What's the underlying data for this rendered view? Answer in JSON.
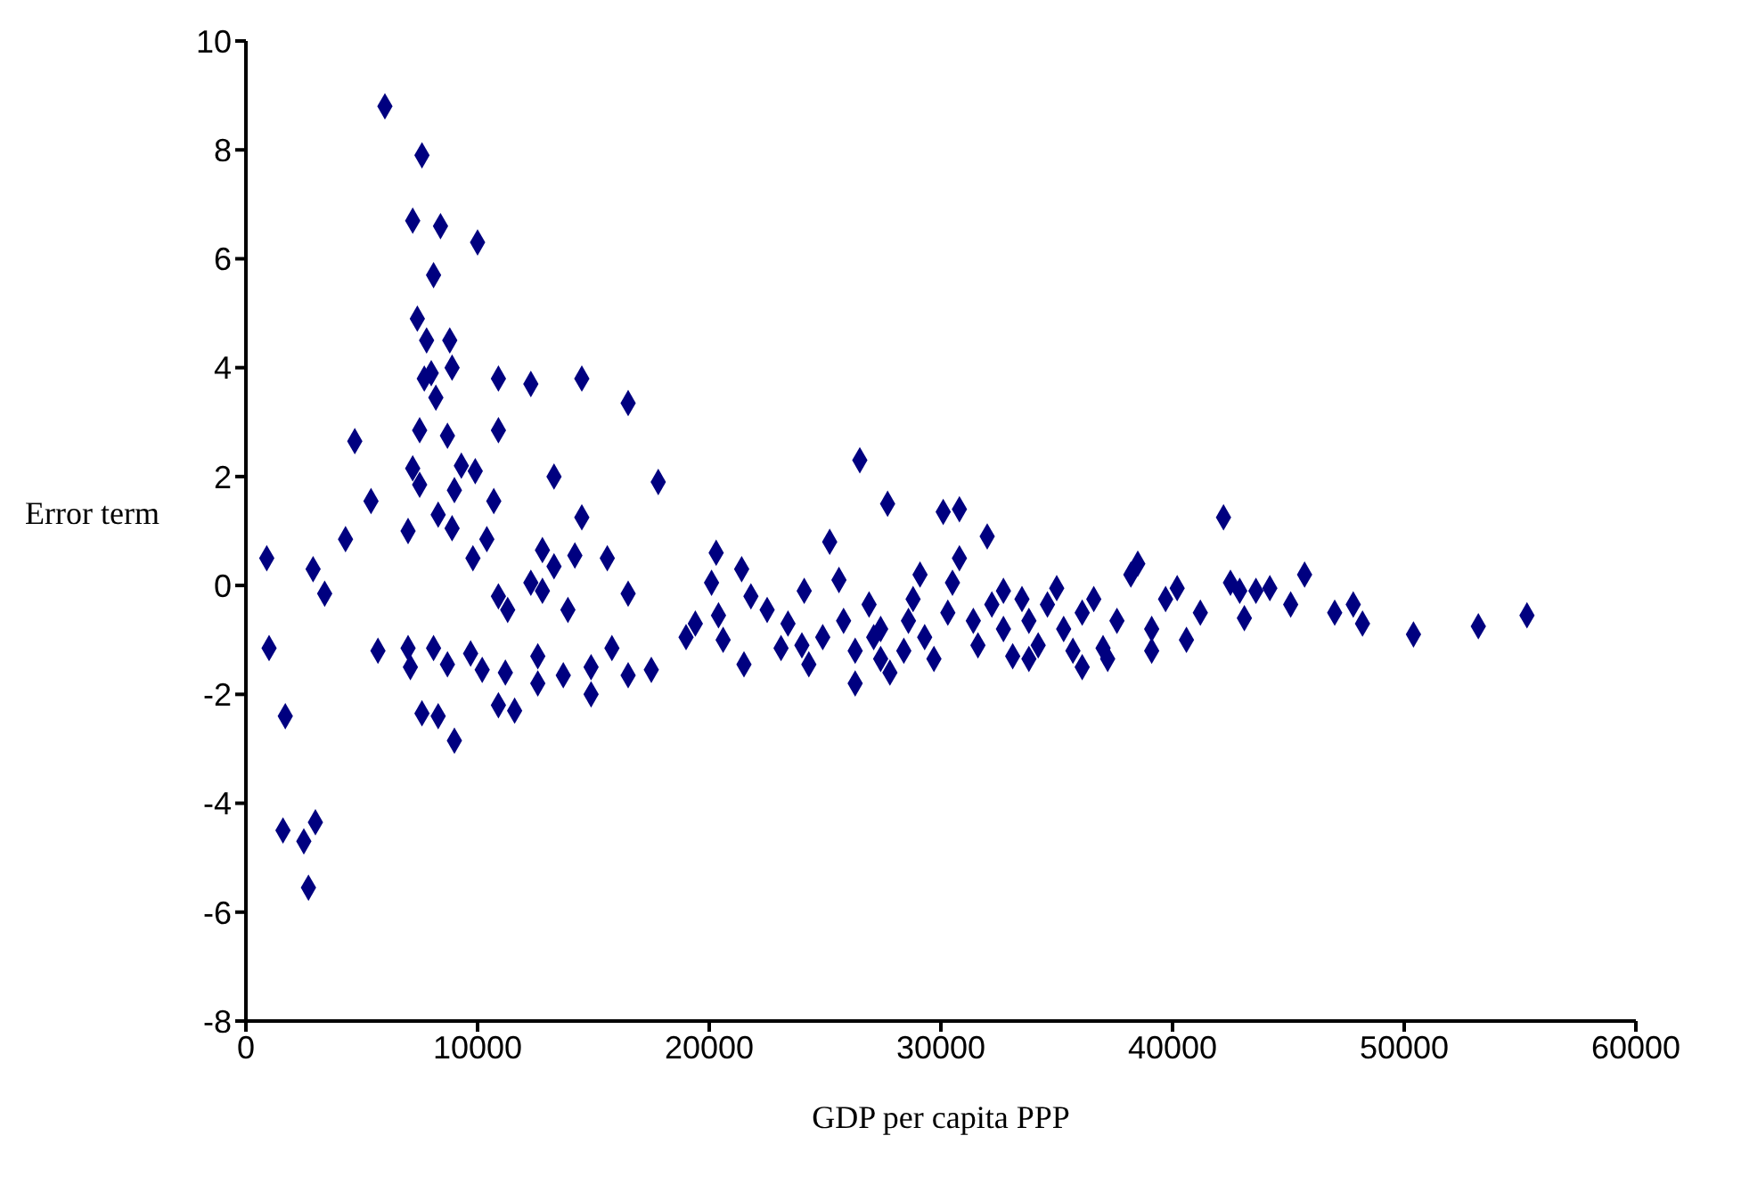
{
  "chart_data": {
    "type": "scatter",
    "xlabel": "GDP per capita PPP",
    "ylabel": "Error term",
    "marker": "diamond",
    "xlim": [
      0,
      60000
    ],
    "xticks": [
      0,
      10000,
      20000,
      30000,
      40000,
      50000,
      60000
    ],
    "ylim": [
      -8,
      10
    ],
    "yticks": [
      -8,
      -6,
      -4,
      -2,
      0,
      2,
      4,
      6,
      8,
      10
    ],
    "series": [
      {
        "color": "#000080",
        "x": [
          6000,
          7600,
          7200,
          8400,
          10000,
          8100,
          7400,
          7800,
          8800,
          7700,
          8000,
          8900,
          10900,
          12300,
          14500,
          16500,
          8200,
          7500,
          8700,
          10900,
          4700,
          7200,
          9300,
          9900,
          13300,
          17800,
          5400,
          7500,
          9000,
          10700,
          14500,
          8300,
          8900,
          7000,
          10400,
          4300,
          900,
          2900,
          9800,
          12800,
          13300,
          14200,
          15600,
          12300,
          12800,
          3400,
          10900,
          11300,
          13900,
          16500,
          1000,
          5700,
          7000,
          8100,
          9700,
          7100,
          8700,
          10200,
          11200,
          12600,
          12600,
          13700,
          14900,
          15800,
          16500,
          17500,
          14900,
          1700,
          7600,
          8300,
          10900,
          11600,
          9000,
          1600,
          3000,
          2500,
          2700,
          20300,
          20100,
          20400,
          19400,
          19000,
          21400,
          21800,
          21500,
          22500,
          23100,
          24300,
          24100,
          23400,
          25600,
          25200,
          26500,
          27700,
          24900,
          25800,
          26300,
          26900,
          27400,
          27400,
          30100,
          30800,
          32000,
          30800,
          30500,
          28800,
          28600,
          28400,
          29300,
          29700,
          30300,
          31400,
          31600,
          32200,
          32700,
          33100,
          33500,
          33800,
          34200,
          34600,
          35300,
          35700,
          36100,
          36600,
          37000,
          37600,
          38200,
          38500,
          39100,
          39700,
          40200,
          40600,
          41200,
          42200,
          42500,
          42900,
          43100,
          43600,
          44200,
          45100,
          45700,
          47000,
          47800,
          48200,
          50400,
          53200,
          55300,
          26300,
          27800,
          27100,
          33800,
          36100,
          37200,
          39100,
          20600,
          24000,
          32700,
          29100,
          35000
        ],
        "values": [
          8.8,
          7.9,
          6.7,
          6.6,
          6.3,
          5.7,
          4.9,
          4.5,
          4.5,
          3.8,
          3.9,
          4.0,
          3.8,
          3.7,
          3.8,
          3.35,
          3.45,
          2.85,
          2.75,
          2.85,
          2.65,
          2.15,
          2.2,
          2.1,
          2.0,
          1.9,
          1.55,
          1.85,
          1.75,
          1.55,
          1.25,
          1.3,
          1.05,
          1.0,
          0.85,
          0.85,
          0.5,
          0.3,
          0.5,
          0.65,
          0.35,
          0.55,
          0.5,
          0.05,
          -0.1,
          -0.15,
          -0.2,
          -0.45,
          -0.45,
          -0.15,
          -1.15,
          -1.2,
          -1.15,
          -1.15,
          -1.25,
          -1.5,
          -1.45,
          -1.55,
          -1.6,
          -1.3,
          -1.8,
          -1.65,
          -1.5,
          -1.15,
          -1.65,
          -1.55,
          -2.0,
          -2.4,
          -2.35,
          -2.4,
          -2.2,
          -2.3,
          -2.85,
          -4.5,
          -4.35,
          -4.7,
          -5.55,
          0.6,
          0.05,
          -0.55,
          -0.7,
          -0.95,
          0.3,
          -0.2,
          -1.45,
          -0.45,
          -1.15,
          -1.45,
          -0.1,
          -0.7,
          0.1,
          0.8,
          2.3,
          1.5,
          -0.95,
          -0.65,
          -1.2,
          -0.35,
          -1.35,
          -0.8,
          1.35,
          1.4,
          0.9,
          0.5,
          0.05,
          -0.25,
          -0.65,
          -1.2,
          -0.95,
          -1.35,
          -0.5,
          -0.65,
          -1.1,
          -0.35,
          -0.8,
          -1.3,
          -0.25,
          -0.65,
          -1.1,
          -0.35,
          -0.8,
          -1.2,
          -0.5,
          -0.25,
          -1.15,
          -0.65,
          0.2,
          0.4,
          -0.8,
          -0.25,
          -0.05,
          -1.0,
          -0.5,
          1.25,
          0.05,
          -0.1,
          -0.6,
          -0.1,
          -0.05,
          -0.35,
          0.2,
          -0.5,
          -0.35,
          -0.7,
          -0.9,
          -0.75,
          -0.55,
          -1.8,
          -1.6,
          -0.95,
          -1.35,
          -1.5,
          -1.35,
          -1.2,
          -1.0,
          -1.1,
          -0.1,
          0.2,
          -0.05
        ]
      }
    ]
  }
}
